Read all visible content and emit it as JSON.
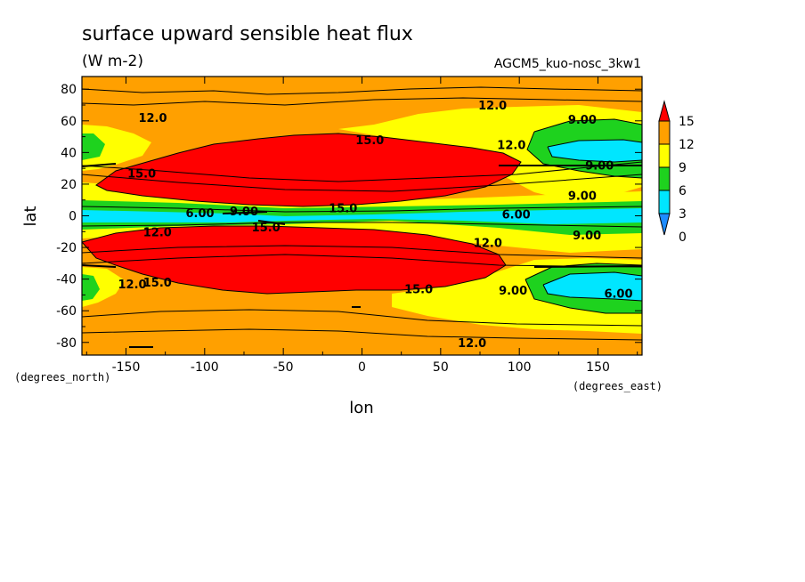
{
  "chart_data": {
    "type": "heatmap",
    "title": "surface upward sensible heat flux",
    "units": "(W m-2)",
    "experiment": "AGCM5_kuo-nosc_3kw1",
    "xlabel": "lon",
    "ylabel": "lat",
    "x_units": "(degrees_east)",
    "y_units": "(degrees_north)",
    "xlim": [
      -178,
      178
    ],
    "ylim": [
      -88,
      88
    ],
    "x_ticks": [
      -150,
      -100,
      -50,
      0,
      50,
      100,
      150
    ],
    "x_tick_labels": [
      "-150",
      "-100",
      "-50",
      "0",
      "50",
      "100",
      "150"
    ],
    "y_ticks": [
      80,
      60,
      40,
      20,
      0,
      -20,
      -40,
      -60,
      -80
    ],
    "y_tick_labels": [
      "80",
      "60",
      "40",
      "20",
      "0",
      "-20",
      "-40",
      "-60",
      "-80"
    ],
    "colorbar": {
      "levels": [
        0,
        3,
        6,
        9,
        12,
        15
      ],
      "labels": [
        "0",
        "3",
        "6",
        "9",
        "12",
        "15"
      ],
      "colors": [
        "#1e8cff",
        "#00e6ff",
        "#1ed21e",
        "#ffff00",
        "#ffa000",
        "#ff0000"
      ],
      "extend": "both"
    },
    "contour_labels": [
      {
        "text": "12.0",
        "lon": -133,
        "lat": 62
      },
      {
        "text": "12.0",
        "lon": 83,
        "lat": 70
      },
      {
        "text": "9.00",
        "lon": 140,
        "lat": 61
      },
      {
        "text": "15.0",
        "lon": 5,
        "lat": 48
      },
      {
        "text": "12.0",
        "lon": 95,
        "lat": 45
      },
      {
        "text": "15.0",
        "lon": -140,
        "lat": 27
      },
      {
        "text": "9.00",
        "lon": 151,
        "lat": 32
      },
      {
        "text": "9.00",
        "lon": 140,
        "lat": 13
      },
      {
        "text": "6.00",
        "lon": -103,
        "lat": 2
      },
      {
        "text": "9.00",
        "lon": -75,
        "lat": 3
      },
      {
        "text": "15.0",
        "lon": -12,
        "lat": 5
      },
      {
        "text": "6.00",
        "lon": 98,
        "lat": 1
      },
      {
        "text": "9.00",
        "lon": 143,
        "lat": -12
      },
      {
        "text": "12.0",
        "lon": -130,
        "lat": -10
      },
      {
        "text": "15.0",
        "lon": -61,
        "lat": -7
      },
      {
        "text": "12.0",
        "lon": 80,
        "lat": -17
      },
      {
        "text": "12.0",
        "lon": -146,
        "lat": -43
      },
      {
        "text": "15.0",
        "lon": -130,
        "lat": -42
      },
      {
        "text": "15.0",
        "lon": 36,
        "lat": -46
      },
      {
        "text": "9.00",
        "lon": 96,
        "lat": -47
      },
      {
        "text": "6.00",
        "lon": 163,
        "lat": -49
      },
      {
        "text": "12.0",
        "lon": 70,
        "lat": -80
      }
    ]
  }
}
